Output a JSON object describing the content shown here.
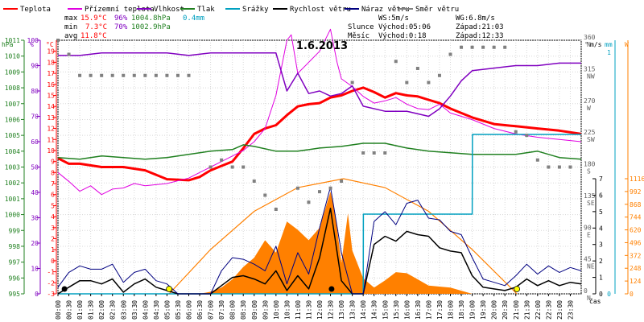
{
  "chart_data": {
    "type": "line",
    "title": "1.6.2013",
    "legend": {
      "position": "top",
      "items": [
        {
          "label": "Teplota",
          "color": "#ff0000"
        },
        {
          "label": "Přízemní teplota",
          "color": "#e000e0"
        },
        {
          "label": "Vlhkost",
          "color": "#8000c0"
        },
        {
          "label": "Tlak",
          "color": "#208020"
        },
        {
          "label": "Srážky",
          "color": "#00a0c0"
        },
        {
          "label": "Rychlost větru",
          "color": "#000000"
        },
        {
          "label": "Náraz větru",
          "color": "#000080"
        },
        {
          "label": "Směr větru",
          "color": "#808080"
        }
      ]
    },
    "stats": {
      "max": {
        "label": "max",
        "temp": "15.9°C",
        "hum": "96%",
        "press": "1004.8hPa",
        "rain": "0.4mm"
      },
      "min": {
        "label": "min",
        "temp": "7.3°C",
        "hum": "70%",
        "press": "1002.9hPa"
      },
      "avg": {
        "label": "avg",
        "temp": "11.8°C"
      },
      "ws_max": "WS:5m/s",
      "wg_max": "WG:6.8m/s",
      "sun": {
        "label": "Slunce",
        "rise": "Východ:05:06",
        "set": "Západ:21:03"
      },
      "moon": {
        "label": "Měsíc",
        "rise": "Východ:0:18",
        "set": "Západ:12:33"
      }
    },
    "axes": {
      "hpa": {
        "unit": "hPa",
        "min": 995,
        "max": 1011,
        "ticks": [
          "995",
          "996",
          "997",
          "998",
          "999",
          "1000",
          "1001",
          "1002",
          "1003",
          "1004",
          "1005",
          "1006",
          "1007",
          "1008",
          "1009",
          "1010",
          "1011"
        ]
      },
      "pct": {
        "unit": "%",
        "min": 0,
        "max": 100,
        "ticks": [
          "0",
          "10",
          "20",
          "30",
          "40",
          "50",
          "60",
          "70",
          "80",
          "90",
          "100"
        ]
      },
      "temp": {
        "unit": "°C",
        "min": -3,
        "max": 20,
        "ticks": [
          "-3",
          "-2",
          "-1",
          "0",
          "1",
          "2",
          "3",
          "4",
          "5",
          "6",
          "7",
          "8",
          "9",
          "10",
          "11",
          "12",
          "13",
          "14",
          "15",
          "16",
          "17",
          "18",
          "19"
        ]
      },
      "dir": {
        "unit": "°",
        "ticks": [
          {
            "v": "0",
            "n": "N"
          },
          {
            "v": "45",
            "n": "NE"
          },
          {
            "v": "90",
            "n": "E"
          },
          {
            "v": "135",
            "n": "SE"
          },
          {
            "v": "180",
            "n": "S"
          },
          {
            "v": "225",
            "n": "SW"
          },
          {
            "v": "270",
            "n": "W"
          },
          {
            "v": "315",
            "n": "NW"
          },
          {
            "v": "360",
            "n": "N"
          }
        ]
      },
      "wind": {
        "unit": "m/s",
        "min": 0,
        "max": 7,
        "ticks": [
          "0",
          "1",
          "2",
          "3",
          "4",
          "5",
          "6",
          "7"
        ]
      },
      "rain": {
        "unit": "mm",
        "ticks": [
          "0",
          "1"
        ]
      },
      "solar": {
        "unit": "W",
        "min": 0,
        "max": 1116,
        "ticks": [
          "0",
          "124",
          "248",
          "372",
          "496",
          "620",
          "744",
          "868",
          "992",
          "1116"
        ]
      },
      "x": {
        "label": "čas",
        "ticks": [
          "00:00",
          "00:30",
          "01:00",
          "01:30",
          "02:00",
          "02:30",
          "03:00",
          "03:30",
          "04:00",
          "04:30",
          "05:00",
          "05:30",
          "06:00",
          "06:30",
          "07:00",
          "07:30",
          "08:00",
          "08:30",
          "09:00",
          "09:30",
          "10:00",
          "10:30",
          "11:00",
          "11:30",
          "12:00",
          "12:30",
          "13:00",
          "13:30",
          "14:00",
          "14:30",
          "15:00",
          "15:30",
          "16:00",
          "16:30",
          "17:00",
          "17:30",
          "18:00",
          "18:30",
          "19:00",
          "19:30",
          "20:00",
          "20:30",
          "21:00",
          "21:30",
          "22:00",
          "22:30",
          "23:00",
          "23:30"
        ]
      }
    },
    "series": [
      {
        "name": "Teplota",
        "axis": "temp",
        "color": "#ff0000",
        "x": [
          0,
          0.5,
          1,
          2,
          3,
          4,
          5,
          6,
          6.5,
          7,
          7.5,
          8,
          8.5,
          9,
          9.5,
          10,
          10.5,
          11,
          11.5,
          12,
          12.5,
          13,
          13.5,
          14,
          14.5,
          15,
          15.5,
          16,
          16.5,
          17,
          17.5,
          18,
          19,
          20,
          21,
          22,
          23,
          24
        ],
        "y": [
          9.3,
          8.8,
          8.8,
          8.5,
          8.5,
          8.2,
          7.4,
          7.3,
          7.6,
          8.2,
          8.6,
          9.0,
          10.2,
          11.5,
          12.0,
          12.3,
          13.2,
          14.0,
          14.2,
          14.3,
          14.8,
          15.0,
          15.4,
          15.7,
          15.3,
          14.8,
          15.2,
          15.0,
          14.9,
          14.6,
          14.3,
          13.8,
          13.0,
          12.4,
          12.2,
          12.0,
          11.8,
          11.5
        ]
      },
      {
        "name": "Přízemní teplota",
        "axis": "temp",
        "color": "#e000e0",
        "x": [
          0,
          0.5,
          1,
          1.5,
          2,
          2.5,
          3,
          3.5,
          4,
          5,
          6,
          6.5,
          7,
          7.5,
          8,
          8.5,
          9,
          9.5,
          10,
          10.5,
          10.7,
          11,
          11.5,
          12,
          12.5,
          12.8,
          13,
          13.5,
          14,
          14.5,
          15,
          15.5,
          16,
          16.5,
          17,
          17.5,
          18,
          19,
          20,
          21,
          22,
          23,
          24
        ],
        "y": [
          8.0,
          7.2,
          6.3,
          6.8,
          6.0,
          6.5,
          6.6,
          7.0,
          6.8,
          7.0,
          7.5,
          8.0,
          8.5,
          9.0,
          9.5,
          10.0,
          10.8,
          12.0,
          15.0,
          20.0,
          20.5,
          17.0,
          18.0,
          19.0,
          21.0,
          18.0,
          16.5,
          15.8,
          14.9,
          14.3,
          14.5,
          14.8,
          14.2,
          13.8,
          13.7,
          14.2,
          13.4,
          12.8,
          12.0,
          11.5,
          11.2,
          11.0,
          10.8
        ]
      },
      {
        "name": "Vlhkost",
        "axis": "pct",
        "color": "#8000c0",
        "x": [
          0,
          1,
          2,
          3,
          4,
          5,
          6,
          7,
          8,
          9,
          10,
          10.5,
          11,
          11.5,
          12,
          12.5,
          13,
          13.5,
          14,
          15,
          16,
          17,
          17.5,
          18,
          18.5,
          19,
          20,
          21,
          22,
          23,
          24
        ],
        "y": [
          94,
          94,
          95,
          95,
          95,
          95,
          94,
          95,
          95,
          95,
          95,
          80,
          87,
          79,
          80,
          78,
          79,
          82,
          74,
          72,
          72,
          70,
          73,
          78,
          84,
          88,
          89,
          90,
          90,
          91,
          91
        ]
      },
      {
        "name": "Tlak",
        "axis": "hpa",
        "color": "#208020",
        "x": [
          0,
          1,
          2,
          3,
          4,
          5,
          6,
          7,
          8,
          8.5,
          9,
          10,
          11,
          12,
          13,
          14,
          15,
          16,
          17,
          18,
          19,
          20,
          21,
          22,
          23,
          24
        ],
        "y": [
          1003.6,
          1003.5,
          1003.7,
          1003.6,
          1003.5,
          1003.6,
          1003.8,
          1004.0,
          1004.1,
          1004.4,
          1004.3,
          1004.0,
          1004.0,
          1004.2,
          1004.3,
          1004.5,
          1004.5,
          1004.2,
          1004.0,
          1003.9,
          1003.8,
          1003.8,
          1003.8,
          1004.0,
          1003.6,
          1003.5
        ]
      },
      {
        "name": "Srážky",
        "axis": "rain",
        "color": "#00a0c0",
        "x": [
          0,
          14,
          14.01,
          19,
          19.01,
          24
        ],
        "y": [
          0,
          0,
          0.33,
          0.33,
          0.66,
          0.66
        ]
      },
      {
        "name": "Rychlost větru",
        "axis": "wind",
        "color": "#000000",
        "x": [
          0,
          0.5,
          1,
          1.5,
          2,
          2.5,
          3,
          3.5,
          4,
          4.5,
          5,
          5.5,
          6,
          6.5,
          7,
          7.5,
          8,
          8.5,
          9,
          9.5,
          10,
          10.5,
          11,
          11.5,
          12,
          12.5,
          13,
          13.5,
          14,
          14.5,
          15,
          15.5,
          16,
          16.5,
          17,
          17.5,
          18,
          18.5,
          19,
          19.5,
          20,
          20.5,
          21,
          21.5,
          22,
          22.5,
          23,
          23.5,
          24
        ],
        "y": [
          0,
          0.4,
          0.8,
          0.8,
          0.6,
          0.9,
          0.1,
          0.6,
          0.9,
          0.4,
          0.2,
          0,
          0,
          0,
          0,
          0.5,
          1.0,
          1.1,
          0.9,
          0.6,
          1.4,
          0.2,
          1.1,
          0.3,
          2.2,
          5.2,
          0.8,
          0,
          0,
          3.0,
          3.5,
          3.2,
          3.8,
          3.6,
          3.5,
          2.8,
          2.6,
          2.5,
          1.1,
          0.4,
          0.3,
          0.2,
          0.4,
          0.9,
          0.5,
          0.8,
          0.5,
          0.7,
          0.6
        ]
      },
      {
        "name": "Náraz větru",
        "axis": "wind",
        "color": "#000080",
        "x": [
          0,
          0.5,
          1,
          1.5,
          2,
          2.5,
          3,
          3.5,
          4,
          4.5,
          5,
          5.5,
          6,
          6.5,
          7,
          7.5,
          8,
          8.5,
          9,
          9.5,
          10,
          10.5,
          11,
          11.5,
          12,
          12.5,
          13,
          13.5,
          14,
          14.5,
          15,
          15.5,
          16,
          16.5,
          17,
          17.5,
          18,
          18.5,
          19,
          19.5,
          20,
          20.5,
          21,
          21.5,
          22,
          22.5,
          23,
          23.5,
          24
        ],
        "y": [
          0.4,
          1.3,
          1.7,
          1.5,
          1.5,
          1.8,
          0.7,
          1.3,
          1.5,
          0.8,
          0.6,
          0,
          0,
          0,
          0,
          1.4,
          2.2,
          2.1,
          1.8,
          1.4,
          2.9,
          0.6,
          2.5,
          1.2,
          4.0,
          6.5,
          2.5,
          0,
          0,
          4.4,
          5.0,
          4.2,
          5.5,
          5.7,
          4.6,
          4.5,
          3.8,
          3.6,
          2.2,
          0.9,
          0.7,
          0.5,
          1.1,
          1.8,
          1.2,
          1.7,
          1.3,
          1.6,
          1.4
        ]
      },
      {
        "name": "Směr větru",
        "axis": "dir",
        "color": "#808080",
        "x": [
          0,
          0.5,
          1,
          1.5,
          2,
          2.5,
          3,
          3.5,
          4,
          4.5,
          5,
          5.5,
          6,
          7,
          7.5,
          8,
          8.5,
          9,
          9.5,
          10,
          11,
          11.5,
          12,
          12.5,
          13,
          13.5,
          14,
          14.5,
          15,
          15.5,
          16,
          16.5,
          17,
          17.5,
          18,
          18.5,
          19,
          19.5,
          20,
          20.5,
          21,
          21.5,
          22,
          22.5,
          23,
          23.5
        ],
        "y": [
          360,
          340,
          310,
          310,
          310,
          310,
          310,
          310,
          310,
          310,
          310,
          310,
          310,
          180,
          190,
          180,
          180,
          160,
          140,
          120,
          150,
          130,
          145,
          150,
          160,
          300,
          200,
          200,
          200,
          330,
          300,
          320,
          300,
          310,
          340,
          350,
          350,
          350,
          350,
          350,
          230,
          225,
          190,
          180,
          180,
          180
        ]
      }
    ],
    "solar": {
      "name": "Sluneční záření",
      "axis": "solar",
      "color": "#ff8000",
      "x": [
        0,
        6.5,
        7,
        7.5,
        8,
        8.5,
        9,
        9.5,
        10,
        10.5,
        11,
        11.5,
        12,
        12.5,
        12.7,
        13,
        13.3,
        13.5,
        14,
        14.5,
        15,
        15.5,
        16,
        16.5,
        17,
        17.5,
        18,
        18.5,
        19,
        24
      ],
      "y": [
        0,
        0,
        20,
        60,
        140,
        260,
        350,
        520,
        400,
        700,
        620,
        520,
        640,
        990,
        800,
        300,
        780,
        420,
        150,
        60,
        130,
        210,
        200,
        140,
        80,
        70,
        60,
        30,
        0,
        0
      ],
      "theoretical_x": [
        5.1,
        7,
        9,
        11,
        13.1,
        15,
        17,
        19,
        21.05
      ],
      "theoretical_y": [
        0,
        430,
        800,
        1030,
        1116,
        1030,
        800,
        430,
        0
      ]
    },
    "markers": {
      "sun_times": [
        "05:06",
        "21:03"
      ],
      "moon_times": [
        "00:18",
        "12:33"
      ]
    }
  }
}
